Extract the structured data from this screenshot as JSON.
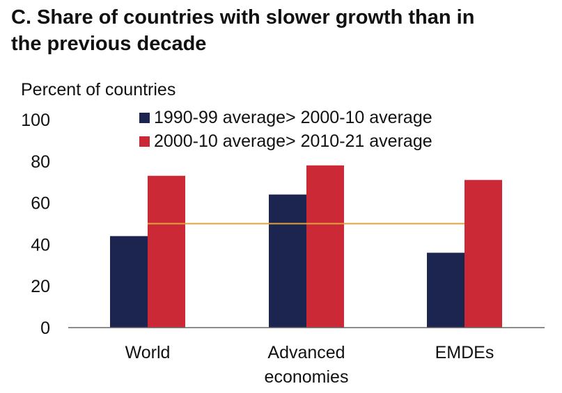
{
  "title_line1": "C. Share of countries with slower growth than in",
  "title_line2": "the previous decade",
  "chart_data": {
    "type": "bar",
    "ylabel": "Percent of countries",
    "ylim": [
      0,
      100
    ],
    "yticks": [
      0,
      20,
      40,
      60,
      80,
      100
    ],
    "categories": [
      [
        "World"
      ],
      [
        "Advanced",
        "economies"
      ],
      [
        "EMDEs"
      ]
    ],
    "series": [
      {
        "name": "1990-99 average> 2000-10 average",
        "color": "#1b2550",
        "values": [
          44,
          64,
          36
        ]
      },
      {
        "name": "2000-10 average> 2010-21 average",
        "color": "#cc2936",
        "values": [
          73,
          78,
          71
        ]
      }
    ],
    "reference_line": {
      "value": 50,
      "color": "#e2a23b"
    },
    "legend": "top-center",
    "grid": false
  }
}
